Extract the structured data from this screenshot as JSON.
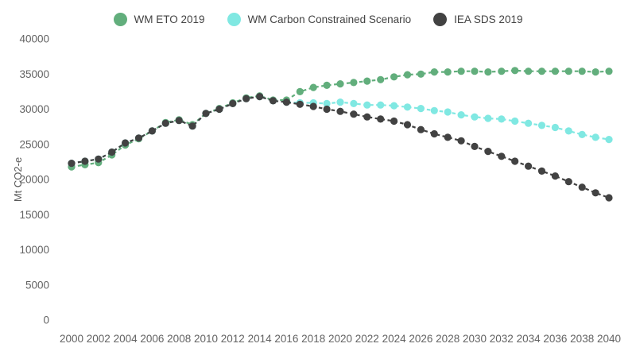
{
  "chart_data": {
    "type": "line",
    "title": "",
    "ylabel": "Mt CO2-e",
    "xlabel": "",
    "ylim": [
      0,
      40000
    ],
    "ytick_step": 5000,
    "xtick_step": 2,
    "grid": false,
    "legend_position": "top",
    "line_style": "dashed-with-round-markers",
    "x": [
      2000,
      2001,
      2002,
      2003,
      2004,
      2005,
      2006,
      2007,
      2008,
      2009,
      2010,
      2011,
      2012,
      2013,
      2014,
      2015,
      2016,
      2017,
      2018,
      2019,
      2020,
      2021,
      2022,
      2023,
      2024,
      2025,
      2026,
      2027,
      2028,
      2029,
      2030,
      2031,
      2032,
      2033,
      2034,
      2035,
      2036,
      2037,
      2038,
      2039,
      2040
    ],
    "series": [
      {
        "name": "WM ETO 2019",
        "color": "#62ae7c",
        "values": [
          21800,
          22100,
          22400,
          23500,
          24900,
          25800,
          26900,
          28100,
          28500,
          27800,
          29400,
          30100,
          30900,
          31600,
          31900,
          31300,
          31300,
          32500,
          33100,
          33400,
          33600,
          33800,
          34000,
          34200,
          34600,
          34900,
          35000,
          35300,
          35300,
          35400,
          35400,
          35300,
          35400,
          35500,
          35400,
          35400,
          35400,
          35400,
          35400,
          35300,
          35400
        ]
      },
      {
        "name": "WM Carbon Constrained Scenario",
        "color": "#80e8e2",
        "values": [
          22300,
          22600,
          22900,
          23900,
          25200,
          25900,
          26900,
          28000,
          28400,
          27600,
          29400,
          30000,
          30800,
          31500,
          31800,
          31200,
          31000,
          30900,
          30900,
          30800,
          31000,
          30800,
          30600,
          30600,
          30500,
          30300,
          30100,
          29800,
          29600,
          29200,
          28900,
          28700,
          28600,
          28300,
          28000,
          27700,
          27400,
          26900,
          26400,
          26000,
          25700
        ]
      },
      {
        "name": "IEA SDS 2019",
        "color": "#424242",
        "values": [
          22300,
          22600,
          22900,
          23900,
          25200,
          25900,
          26900,
          28000,
          28400,
          27600,
          29400,
          30000,
          30800,
          31500,
          31800,
          31200,
          31000,
          30700,
          30400,
          30000,
          29700,
          29300,
          28900,
          28600,
          28300,
          27800,
          27100,
          26500,
          26000,
          25500,
          24700,
          24000,
          23300,
          22600,
          21900,
          21200,
          20500,
          19700,
          18900,
          18100,
          17400
        ]
      }
    ]
  }
}
